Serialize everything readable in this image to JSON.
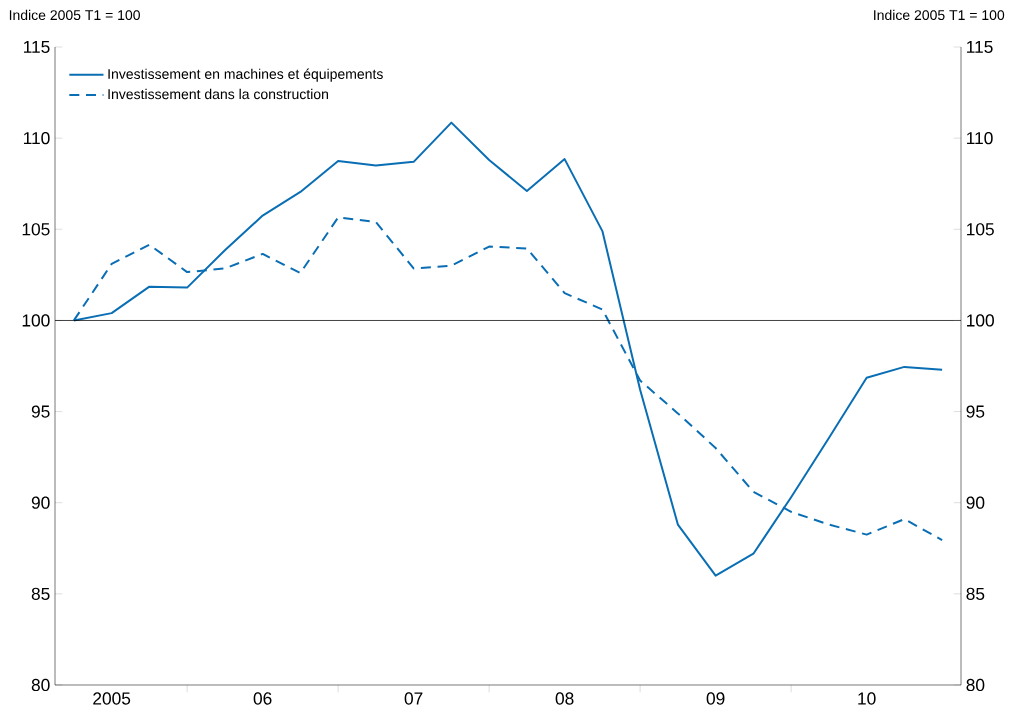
{
  "chart_data": {
    "type": "line",
    "ylabel": "Indice 2005 T1 = 100",
    "y2label": "Indice 2005 T1 = 100",
    "categories": [
      null,
      "2005",
      null,
      null,
      null,
      "06",
      null,
      null,
      null,
      "07",
      null,
      null,
      null,
      "08",
      null,
      null,
      null,
      "09",
      null,
      null,
      null,
      "10",
      null,
      null
    ],
    "series": [
      {
        "name": "Investissement en machines et équipements",
        "color": "#0a6eb4",
        "line_style": "solid",
        "values": [
          100,
          100.4,
          101.85,
          101.8,
          103.85,
          105.75,
          107.05,
          108.75,
          108.5,
          108.7,
          110.85,
          108.8,
          107.1,
          108.85,
          104.9,
          96.2,
          88.8,
          86.0,
          87.2,
          90.3,
          93.55,
          96.85,
          97.45,
          97.3
        ]
      },
      {
        "name": "Investissement dans la construction",
        "color": "#0a6eb4",
        "line_style": "dashed",
        "values": [
          100,
          103.1,
          104.15,
          102.65,
          102.85,
          103.65,
          102.6,
          105.65,
          105.4,
          102.85,
          103.0,
          104.05,
          103.95,
          101.5,
          100.6,
          96.7,
          94.9,
          93.0,
          90.6,
          89.5,
          88.8,
          88.25,
          89.1,
          87.95
        ]
      }
    ],
    "ylim": [
      80,
      115
    ],
    "yticks": [
      80,
      85,
      90,
      95,
      100,
      105,
      110,
      115
    ],
    "y2lim": [
      80,
      115
    ],
    "y2ticks": [
      80,
      85,
      90,
      95,
      100,
      105,
      110,
      115
    ],
    "ref_lines": [
      {
        "axis": "y",
        "value": 100,
        "color": "#000000"
      }
    ],
    "legend": "top left",
    "grid": false,
    "marker": "none"
  }
}
